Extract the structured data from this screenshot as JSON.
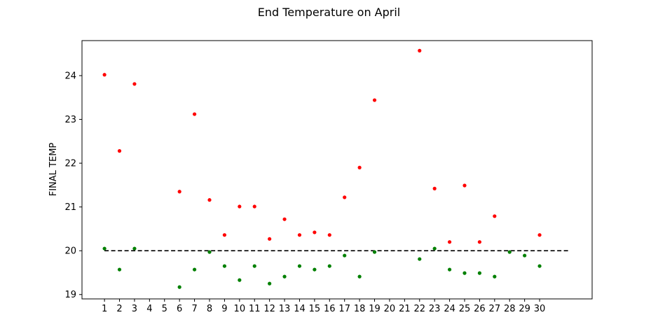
{
  "chart_data": {
    "type": "scatter",
    "title": "End Temperature on April",
    "xlabel": "",
    "ylabel": "FINAL TEMP",
    "xlim": [
      -0.5,
      33.5
    ],
    "ylim": [
      18.9,
      24.8
    ],
    "x_ticks": [
      1,
      2,
      3,
      4,
      5,
      6,
      7,
      8,
      9,
      10,
      11,
      12,
      13,
      14,
      15,
      16,
      17,
      18,
      19,
      20,
      21,
      22,
      23,
      24,
      25,
      26,
      27,
      28,
      29,
      30
    ],
    "y_ticks": [
      19,
      20,
      21,
      22,
      23,
      24
    ],
    "grid": false,
    "legend": "none",
    "series": [
      {
        "color": "#ff0000",
        "points": [
          {
            "x": 1,
            "y": 24.02
          },
          {
            "x": 2,
            "y": 22.28
          },
          {
            "x": 3,
            "y": 23.81
          },
          {
            "x": 6,
            "y": 21.35
          },
          {
            "x": 7,
            "y": 23.12
          },
          {
            "x": 8,
            "y": 21.16
          },
          {
            "x": 9,
            "y": 20.36
          },
          {
            "x": 10,
            "y": 21.01
          },
          {
            "x": 11,
            "y": 21.01
          },
          {
            "x": 12,
            "y": 20.27
          },
          {
            "x": 13,
            "y": 20.72
          },
          {
            "x": 14,
            "y": 20.36
          },
          {
            "x": 15,
            "y": 20.42
          },
          {
            "x": 16,
            "y": 20.36
          },
          {
            "x": 17,
            "y": 21.22
          },
          {
            "x": 18,
            "y": 21.9
          },
          {
            "x": 19,
            "y": 23.44
          },
          {
            "x": 22,
            "y": 24.57
          },
          {
            "x": 23,
            "y": 21.42
          },
          {
            "x": 24,
            "y": 20.2
          },
          {
            "x": 25,
            "y": 21.49
          },
          {
            "x": 26,
            "y": 20.2
          },
          {
            "x": 27,
            "y": 20.79
          },
          {
            "x": 30,
            "y": 20.36
          }
        ]
      },
      {
        "color": "#008000",
        "points": [
          {
            "x": 1,
            "y": 20.05
          },
          {
            "x": 2,
            "y": 19.57
          },
          {
            "x": 3,
            "y": 20.05
          },
          {
            "x": 6,
            "y": 19.17
          },
          {
            "x": 7,
            "y": 19.57
          },
          {
            "x": 8,
            "y": 19.97
          },
          {
            "x": 9,
            "y": 19.65
          },
          {
            "x": 10,
            "y": 19.33
          },
          {
            "x": 11,
            "y": 19.65
          },
          {
            "x": 12,
            "y": 19.25
          },
          {
            "x": 13,
            "y": 19.41
          },
          {
            "x": 14,
            "y": 19.65
          },
          {
            "x": 15,
            "y": 19.57
          },
          {
            "x": 16,
            "y": 19.65
          },
          {
            "x": 17,
            "y": 19.89
          },
          {
            "x": 18,
            "y": 19.41
          },
          {
            "x": 19,
            "y": 19.97
          },
          {
            "x": 22,
            "y": 19.81
          },
          {
            "x": 23,
            "y": 20.05
          },
          {
            "x": 24,
            "y": 19.57
          },
          {
            "x": 25,
            "y": 19.49
          },
          {
            "x": 26,
            "y": 19.49
          },
          {
            "x": 27,
            "y": 19.41
          },
          {
            "x": 28,
            "y": 19.97
          },
          {
            "x": 29,
            "y": 19.89
          },
          {
            "x": 30,
            "y": 19.65
          }
        ]
      }
    ],
    "reference_line": {
      "y": 20,
      "x_start": 1,
      "x_end": 32,
      "style": "dashed",
      "color": "#000000"
    }
  }
}
